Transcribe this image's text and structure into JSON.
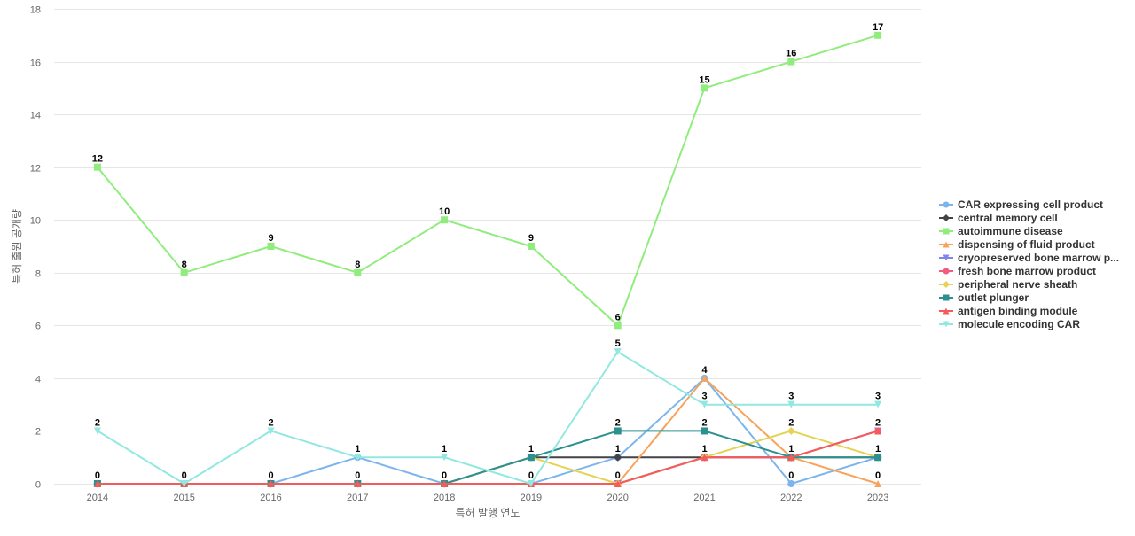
{
  "chart_data": {
    "type": "line",
    "title": "",
    "xlabel": "특허 발행 연도",
    "ylabel": "특허 출원 공개량",
    "ylim": [
      0,
      18
    ],
    "yticks": [
      0,
      2,
      4,
      6,
      8,
      10,
      12,
      14,
      16,
      18
    ],
    "grid": true,
    "legend_position": "right",
    "categories": [
      "2014",
      "2015",
      "2016",
      "2017",
      "2018",
      "2019",
      "2020",
      "2021",
      "2022",
      "2023"
    ],
    "series": [
      {
        "name": "CAR expressing cell product",
        "color": "#7cb5ec",
        "marker": "circle",
        "values": [
          0,
          0,
          0,
          1,
          0,
          0,
          1,
          4,
          0,
          1
        ]
      },
      {
        "name": "central memory cell",
        "color": "#434348",
        "marker": "diamond",
        "values": [
          0,
          0,
          0,
          0,
          0,
          1,
          1,
          1,
          1,
          1
        ]
      },
      {
        "name": "autoimmune disease",
        "color": "#90ed7d",
        "marker": "square",
        "values": [
          12,
          8,
          9,
          8,
          10,
          9,
          6,
          15,
          16,
          17
        ]
      },
      {
        "name": "dispensing of fluid product",
        "color": "#f7a35c",
        "marker": "triangle",
        "values": [
          0,
          0,
          0,
          0,
          0,
          0,
          0,
          4,
          1,
          0
        ]
      },
      {
        "name": "cryopreserved bone marrow p...",
        "color": "#8085e9",
        "marker": "triangle-down",
        "values": [
          0,
          0,
          0,
          0,
          0,
          0,
          0,
          1,
          1,
          2
        ]
      },
      {
        "name": "fresh bone marrow product",
        "color": "#f15c80",
        "marker": "circle",
        "values": [
          0,
          0,
          0,
          0,
          0,
          0,
          0,
          1,
          1,
          2
        ]
      },
      {
        "name": "peripheral nerve sheath",
        "color": "#e4d354",
        "marker": "diamond",
        "values": [
          0,
          0,
          0,
          0,
          0,
          1,
          0,
          1,
          2,
          1
        ]
      },
      {
        "name": "outlet plunger",
        "color": "#2b908f",
        "marker": "square",
        "values": [
          0,
          0,
          0,
          0,
          0,
          1,
          2,
          2,
          1,
          1
        ]
      },
      {
        "name": "antigen binding module",
        "color": "#f45b5b",
        "marker": "triangle",
        "values": [
          0,
          0,
          0,
          0,
          0,
          0,
          0,
          1,
          1,
          2
        ]
      },
      {
        "name": "molecule encoding CAR",
        "color": "#91e8e1",
        "marker": "triangle-down",
        "values": [
          2,
          0,
          2,
          1,
          1,
          0,
          5,
          3,
          3,
          3
        ]
      }
    ],
    "data_labels": {
      "above": [
        {
          "category": "2014",
          "value": 12
        },
        {
          "category": "2014",
          "value": 2
        },
        {
          "category": "2014",
          "value": 0
        },
        {
          "category": "2015",
          "value": 8
        },
        {
          "category": "2015",
          "value": 0
        },
        {
          "category": "2016",
          "value": 9
        },
        {
          "category": "2016",
          "value": 2
        },
        {
          "category": "2016",
          "value": 0
        },
        {
          "category": "2017",
          "value": 8
        },
        {
          "category": "2017",
          "value": 1
        },
        {
          "category": "2017",
          "value": 0
        },
        {
          "category": "2018",
          "value": 10
        },
        {
          "category": "2018",
          "value": 1
        },
        {
          "category": "2018",
          "value": 0
        },
        {
          "category": "2019",
          "value": 9
        },
        {
          "category": "2019",
          "value": 1
        },
        {
          "category": "2019",
          "value": 0
        },
        {
          "category": "2020",
          "value": 6
        },
        {
          "category": "2020",
          "value": 5
        },
        {
          "category": "2020",
          "value": 2
        },
        {
          "category": "2020",
          "value": 1
        },
        {
          "category": "2020",
          "value": 0
        },
        {
          "category": "2021",
          "value": 15
        },
        {
          "category": "2021",
          "value": 4
        },
        {
          "category": "2021",
          "value": 3
        },
        {
          "category": "2021",
          "value": 2
        },
        {
          "category": "2021",
          "value": 1
        },
        {
          "category": "2022",
          "value": 16
        },
        {
          "category": "2022",
          "value": 3
        },
        {
          "category": "2022",
          "value": 2
        },
        {
          "category": "2022",
          "value": 1
        },
        {
          "category": "2022",
          "value": 0
        },
        {
          "category": "2023",
          "value": 17
        },
        {
          "category": "2023",
          "value": 3
        },
        {
          "category": "2023",
          "value": 2
        },
        {
          "category": "2023",
          "value": 1
        },
        {
          "category": "2023",
          "value": 0
        }
      ]
    }
  }
}
